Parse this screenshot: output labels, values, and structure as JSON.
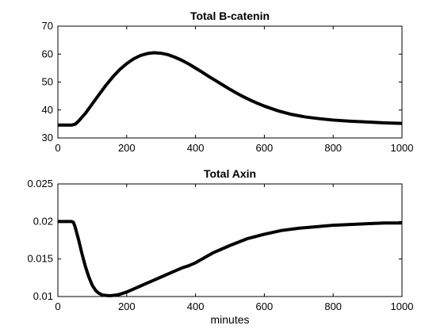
{
  "chart_data": [
    {
      "type": "line",
      "title": "Total B-catenin",
      "xlabel": "",
      "ylabel": "",
      "xlim": [
        0,
        1000
      ],
      "ylim": [
        30,
        70
      ],
      "xticks": [
        "0",
        "200",
        "400",
        "600",
        "800",
        "1000"
      ],
      "yticks": [
        "30",
        "40",
        "50",
        "60",
        "70"
      ],
      "grid": false,
      "series": [
        {
          "x": [
            0,
            40,
            50,
            60,
            80,
            100,
            120,
            140,
            160,
            180,
            200,
            220,
            240,
            260,
            280,
            300,
            320,
            340,
            360,
            380,
            400,
            420,
            440,
            460,
            480,
            500,
            520,
            540,
            560,
            580,
            600,
            640,
            680,
            720,
            760,
            800,
            850,
            900,
            950,
            1000
          ],
          "y": [
            34.6,
            34.6,
            34.9,
            36.0,
            38.8,
            42.2,
            45.6,
            48.9,
            51.9,
            54.5,
            56.6,
            58.3,
            59.5,
            60.2,
            60.5,
            60.3,
            59.8,
            58.9,
            57.8,
            56.5,
            55.0,
            53.5,
            51.9,
            50.4,
            48.9,
            47.4,
            46.0,
            44.7,
            43.5,
            42.4,
            41.4,
            39.7,
            38.4,
            37.5,
            36.9,
            36.4,
            36.0,
            35.7,
            35.4,
            35.2
          ]
        }
      ]
    },
    {
      "type": "line",
      "title": "Total Axin",
      "xlabel": "minutes",
      "ylabel": "",
      "xlim": [
        0,
        1000
      ],
      "ylim": [
        0.01,
        0.025
      ],
      "xticks": [
        "0",
        "200",
        "400",
        "600",
        "800",
        "1000"
      ],
      "yticks": [
        "0.01",
        "0.015",
        "0.02",
        "0.025"
      ],
      "grid": false,
      "series": [
        {
          "x": [
            0,
            40,
            45,
            50,
            60,
            70,
            80,
            90,
            100,
            110,
            120,
            130,
            140,
            150,
            160,
            170,
            180,
            200,
            220,
            240,
            260,
            280,
            300,
            320,
            340,
            360,
            380,
            400,
            450,
            500,
            550,
            600,
            650,
            700,
            750,
            800,
            850,
            900,
            950,
            1000
          ],
          "y": [
            0.02,
            0.02,
            0.0199,
            0.0193,
            0.0176,
            0.0157,
            0.014,
            0.0126,
            0.0115,
            0.0108,
            0.0104,
            0.0102,
            0.01015,
            0.0101,
            0.01015,
            0.0102,
            0.0103,
            0.0106,
            0.011,
            0.0114,
            0.0118,
            0.0122,
            0.0126,
            0.013,
            0.0134,
            0.0138,
            0.0141,
            0.0145,
            0.0158,
            0.0168,
            0.0177,
            0.0183,
            0.0188,
            0.0191,
            0.0193,
            0.0195,
            0.0196,
            0.0197,
            0.0198,
            0.0198
          ]
        }
      ]
    }
  ]
}
